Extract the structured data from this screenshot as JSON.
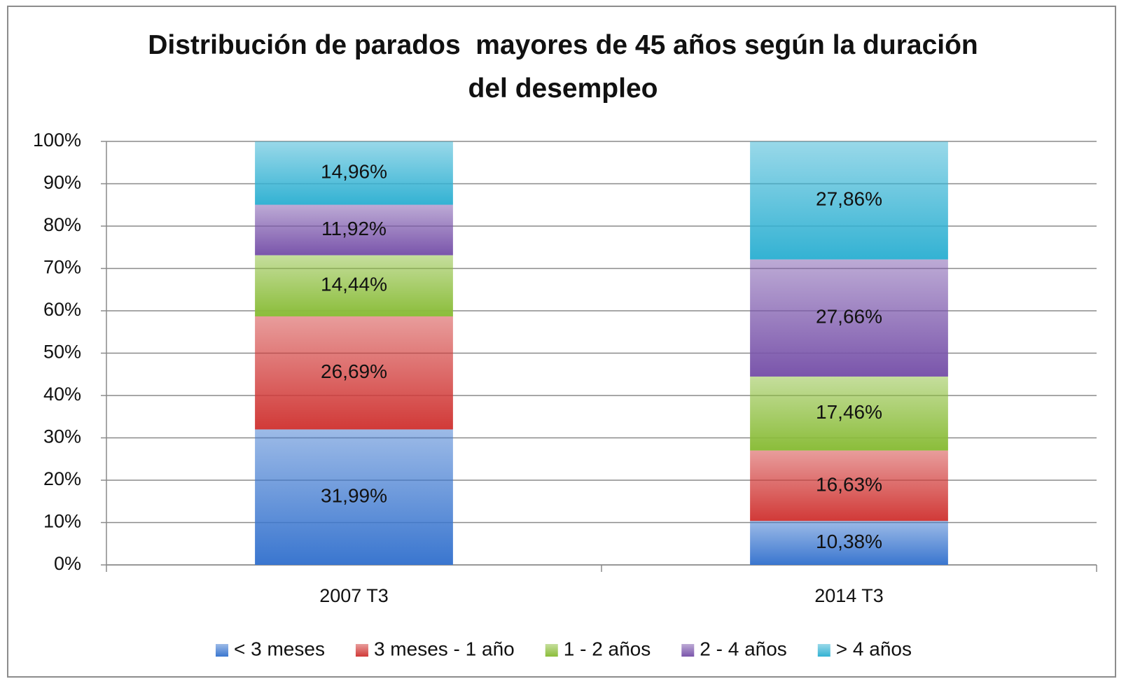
{
  "chart_data": {
    "type": "stacked_bar",
    "title": "Distribución de parados  mayores de 45 años según la duración del desempleo",
    "categories": [
      "2007 T3",
      "2014 T3"
    ],
    "series": [
      {
        "name": "< 3 meses",
        "color": "#3a76cf",
        "values": [
          31.99,
          10.38
        ],
        "value_labels": [
          "31,99%",
          "10,38%"
        ]
      },
      {
        "name": "3 meses - 1 año",
        "color": "#d13a38",
        "values": [
          26.69,
          16.63
        ],
        "value_labels": [
          "26,69%",
          "16,63%"
        ]
      },
      {
        "name": "1 - 2 años",
        "color": "#8bbd3a",
        "values": [
          14.44,
          17.46
        ],
        "value_labels": [
          "14,44%",
          "17,46%"
        ]
      },
      {
        "name": "2 - 4 años",
        "color": "#7a55ab",
        "values": [
          11.92,
          27.66
        ],
        "value_labels": [
          "11,92%",
          "27,66%"
        ]
      },
      {
        "name": "> 4 años",
        "color": "#33b2d3",
        "values": [
          14.96,
          27.86
        ],
        "value_labels": [
          "14,96%",
          "27,86%"
        ]
      }
    ],
    "ylim": [
      0,
      100
    ],
    "yticks": [
      {
        "value": 0,
        "label": "0%"
      },
      {
        "value": 10,
        "label": "10%"
      },
      {
        "value": 20,
        "label": "20%"
      },
      {
        "value": 30,
        "label": "30%"
      },
      {
        "value": 40,
        "label": "40%"
      },
      {
        "value": 50,
        "label": "50%"
      },
      {
        "value": 60,
        "label": "60%"
      },
      {
        "value": 70,
        "label": "70%"
      },
      {
        "value": 80,
        "label": "80%"
      },
      {
        "value": 90,
        "label": "90%"
      },
      {
        "value": 100,
        "label": "100%"
      }
    ],
    "grid": true,
    "legend": "bottom"
  }
}
